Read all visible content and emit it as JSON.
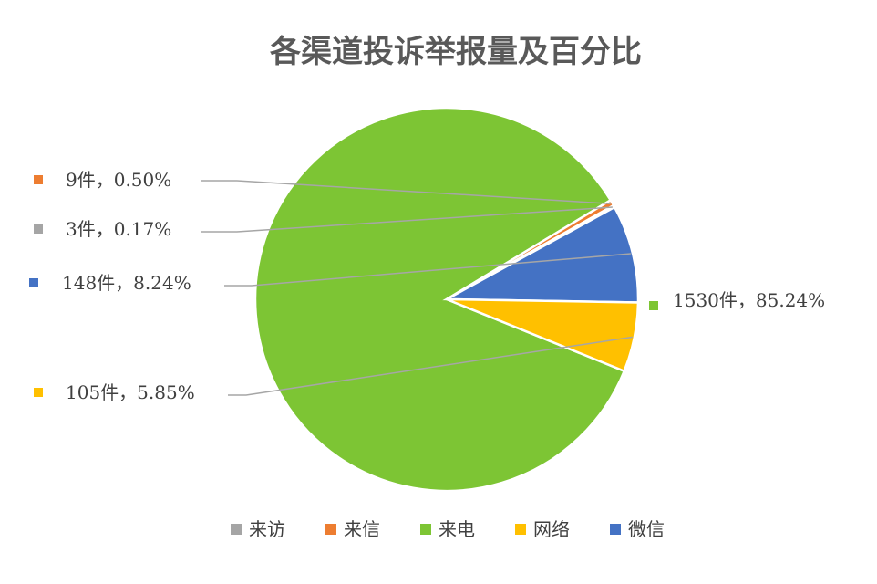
{
  "chart_data": {
    "type": "pie",
    "title": "各渠道投诉举报量及百分比",
    "slices": [
      {
        "name": "来电",
        "value": 1530,
        "percent": 85.24,
        "label": "1530件，85.24%",
        "color": "#7DC534"
      },
      {
        "name": "来信",
        "value": 9,
        "percent": 0.5,
        "label": "9件，0.50%",
        "color": "#ED7D31"
      },
      {
        "name": "来访",
        "value": 3,
        "percent": 0.17,
        "label": "3件，0.17%",
        "color": "#A5A5A5"
      },
      {
        "name": "微信",
        "value": 148,
        "percent": 8.24,
        "label": "148件，8.24%",
        "color": "#4472C4"
      },
      {
        "name": "网络",
        "value": 105,
        "percent": 5.85,
        "label": "105件，5.85%",
        "color": "#FFC000"
      }
    ],
    "legend": {
      "position": "bottom",
      "items": [
        {
          "name": "来访",
          "color": "#A5A5A5"
        },
        {
          "name": "来信",
          "color": "#ED7D31"
        },
        {
          "name": "来电",
          "color": "#7DC534"
        },
        {
          "name": "网络",
          "color": "#FFC000"
        },
        {
          "name": "微信",
          "color": "#4472C4"
        }
      ]
    }
  }
}
